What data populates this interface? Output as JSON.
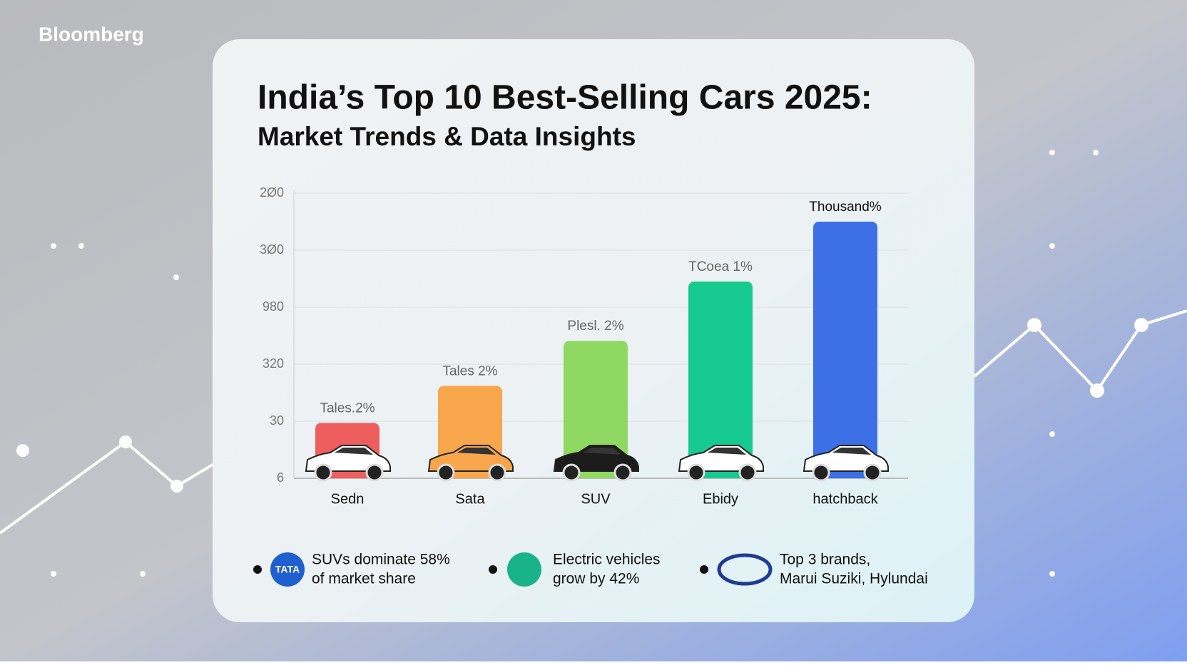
{
  "brand": "Bloomberg",
  "chart_data": {
    "type": "bar",
    "title": "India’s Top 10 Best-Selling Cars 2025:",
    "subtitle": "Market Trends & Data Insights",
    "categories": [
      "Sedn",
      "Sata",
      "SUV",
      "Ebidy",
      "hatchback"
    ],
    "values": [
      0.97,
      1.62,
      2.41,
      3.45,
      4.5
    ],
    "bar_labels": [
      "Tales.2%",
      "Tales 2%",
      "Plesl. 2%",
      "TCoea 1%",
      "Thousand%"
    ],
    "colors": [
      "#ee5e5e",
      "#f7a64c",
      "#8fd862",
      "#16c98f",
      "#3d6fe6"
    ],
    "ylim": [
      0,
      5
    ],
    "yticks": [
      {
        "value": 0,
        "label": "6"
      },
      {
        "value": 1,
        "label": "30"
      },
      {
        "value": 2,
        "label": "320"
      },
      {
        "value": 3,
        "label": "980"
      },
      {
        "value": 4,
        "label": "3Ø0"
      },
      {
        "value": 5,
        "label": "2Ø0"
      }
    ],
    "grid": true
  },
  "insights": [
    {
      "icon": "TATA",
      "lines": [
        "SUVs dominate 58%",
        "of market share"
      ]
    },
    {
      "icon": "",
      "lines": [
        "Electric vehicles",
        "grow by 42%"
      ]
    },
    {
      "icon": "",
      "lines": [
        "Top 3 brands,",
        "Marui Suziki, Hylundai"
      ]
    }
  ]
}
